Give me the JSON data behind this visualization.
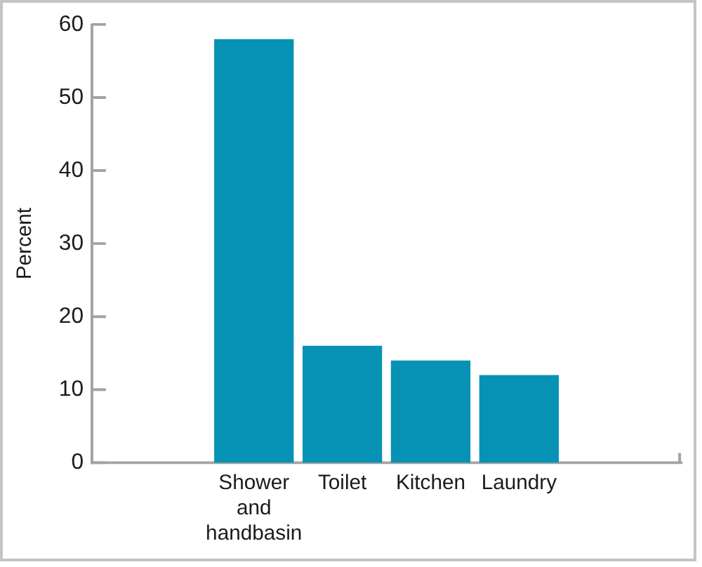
{
  "chart_data": {
    "type": "bar",
    "ylabel": "Percent",
    "categories": [
      "Shower and handbasin",
      "Toilet",
      "Kitchen",
      "Laundry"
    ],
    "values": [
      58,
      16,
      14,
      12
    ],
    "color": "#0592b5",
    "ylim": [
      0,
      60
    ],
    "yticks": [
      0,
      10,
      20,
      30,
      40,
      50,
      60
    ],
    "grid": false
  }
}
